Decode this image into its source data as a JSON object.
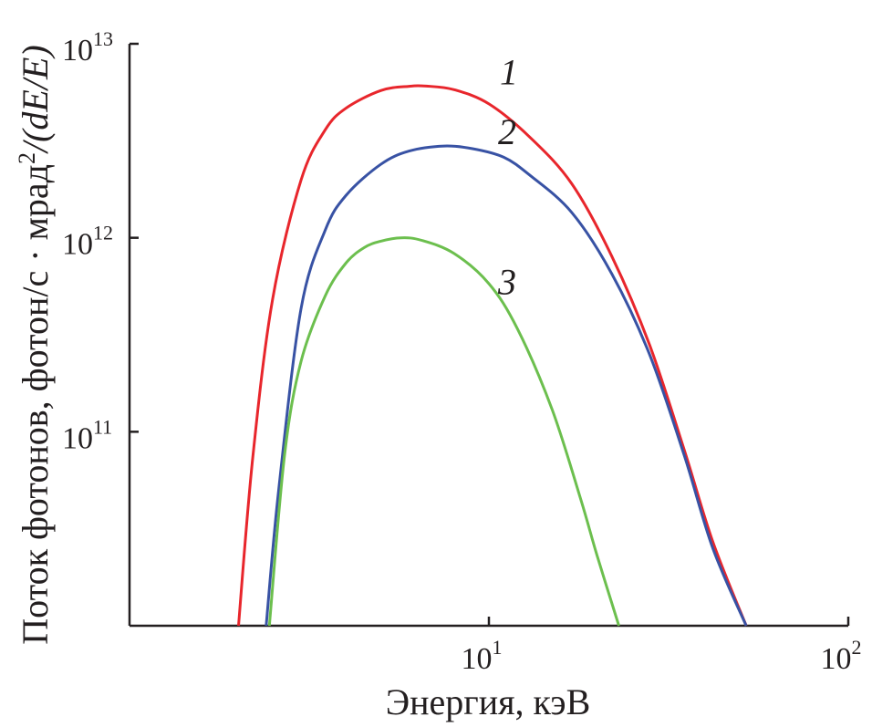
{
  "chart_data": {
    "type": "line",
    "title": "",
    "xlabel": "Энергия, кэВ",
    "ylabel": {
      "main": "Поток фотонов, фотон/с · мрад",
      "sup": "2",
      "tail": "/(dE/E)"
    },
    "x_scale": "log",
    "y_scale": "log",
    "xlim": [
      1,
      100
    ],
    "ylim": [
      10000000000.0,
      10000000000000.0
    ],
    "x_ticks": [
      {
        "value": 10,
        "base": "10",
        "exp": "1"
      },
      {
        "value": 100,
        "base": "10",
        "exp": "2"
      }
    ],
    "y_ticks": [
      {
        "value": 100000000000.0,
        "base": "10",
        "exp": "11"
      },
      {
        "value": 1000000000000.0,
        "base": "10",
        "exp": "12"
      },
      {
        "value": 10000000000000.0,
        "base": "10",
        "exp": "13"
      }
    ],
    "grid": false,
    "legend": "inline labels",
    "series": [
      {
        "name": "1",
        "color": "#e8262c",
        "x": [
          2.01,
          2.2,
          2.5,
          3.0,
          3.5,
          4.0,
          5.0,
          6.0,
          6.7,
          8.0,
          10.0,
          13.0,
          17.0,
          22.0,
          28.0,
          35.0,
          42.0,
          52.0
        ],
        "y": [
          10000000000.0,
          72000000000.0,
          480000000000.0,
          1980000000000.0,
          3590000000000.0,
          4650000000000.0,
          5740000000000.0,
          6040000000000.0,
          6050000000000.0,
          5800000000000.0,
          4900000000000.0,
          3300000000000.0,
          1900000000000.0,
          800000000000.0,
          280000000000.0,
          80000000000.0,
          27000000000.0,
          10000000000.0
        ]
      },
      {
        "name": "2",
        "color": "#3852a4",
        "x": [
          2.4,
          2.6,
          3.0,
          3.5,
          4.0,
          5.0,
          6.0,
          7.5,
          9.0,
          11.0,
          13.0,
          17.0,
          22.0,
          28.0,
          35.0,
          42.0,
          52.0
        ],
        "y": [
          10000000000.0,
          50000000000.0,
          430000000000.0,
          1090000000000.0,
          1650000000000.0,
          2390000000000.0,
          2800000000000.0,
          2970000000000.0,
          2880000000000.0,
          2600000000000.0,
          2100000000000.0,
          1350000000000.0,
          650000000000.0,
          250000000000.0,
          75000000000.0,
          25000000000.0,
          10000000000.0
        ]
      },
      {
        "name": "3",
        "color": "#6cbf4e",
        "x": [
          2.45,
          2.7,
          3.0,
          3.5,
          4.0,
          4.5,
          5.0,
          5.7,
          6.5,
          8.0,
          10.0,
          12.0,
          15.0,
          18.0,
          20.0,
          23.0
        ],
        "y": [
          10000000000.0,
          76000000000.0,
          230000000000.0,
          500000000000.0,
          740000000000.0,
          890000000000.0,
          960000000000.0,
          1000000000000.0,
          970000000000.0,
          830000000000.0,
          580000000000.0,
          340000000000.0,
          130000000000.0,
          45000000000.0,
          23000000000.0,
          10000000000.0
        ]
      }
    ]
  }
}
